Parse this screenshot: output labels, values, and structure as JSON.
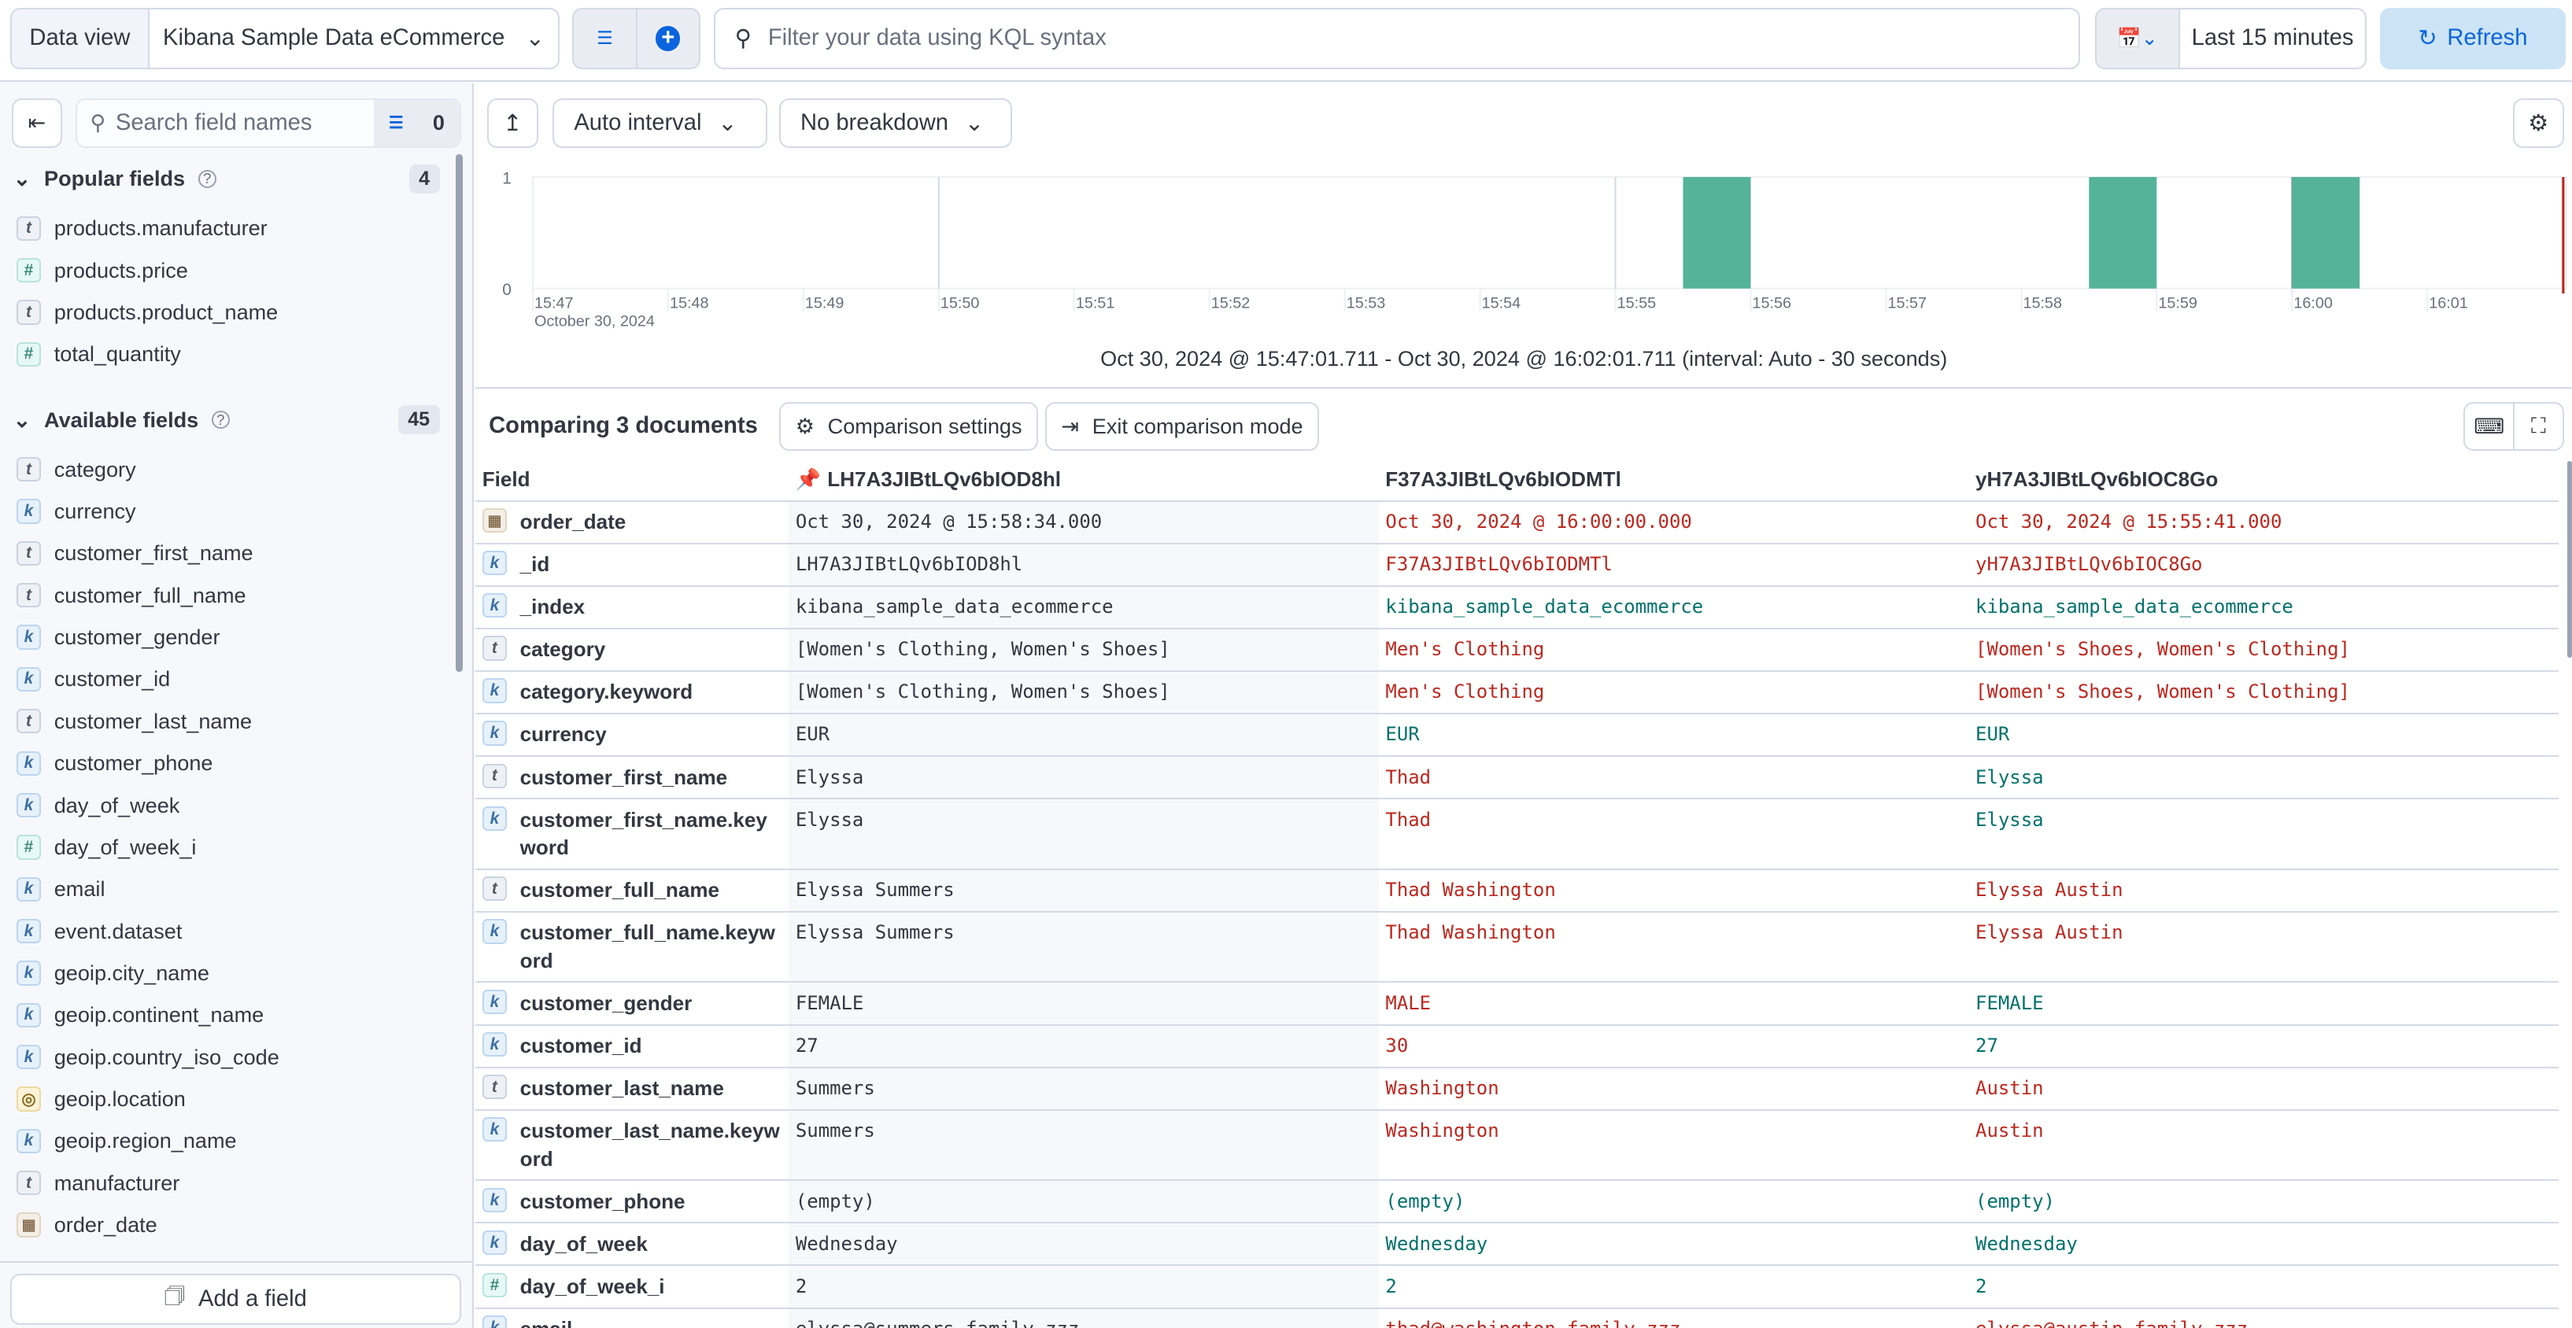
{
  "topbar": {
    "data_view_label": "Data view",
    "data_view_value": "Kibana Sample Data eCommerce",
    "query_placeholder": "Filter your data using KQL syntax",
    "time_range": "Last 15 minutes",
    "refresh_label": "Refresh"
  },
  "sidebar": {
    "search_placeholder": "Search field names",
    "filter_count": "0",
    "popular": {
      "title": "Popular fields",
      "count": "4",
      "items": [
        {
          "name": "products.manufacturer",
          "type": "t"
        },
        {
          "name": "products.price",
          "type": "#"
        },
        {
          "name": "products.product_name",
          "type": "t"
        },
        {
          "name": "total_quantity",
          "type": "#"
        }
      ]
    },
    "available": {
      "title": "Available fields",
      "count": "45",
      "items": [
        {
          "name": "category",
          "type": "t"
        },
        {
          "name": "currency",
          "type": "k"
        },
        {
          "name": "customer_first_name",
          "type": "t"
        },
        {
          "name": "customer_full_name",
          "type": "t"
        },
        {
          "name": "customer_gender",
          "type": "k"
        },
        {
          "name": "customer_id",
          "type": "k"
        },
        {
          "name": "customer_last_name",
          "type": "t"
        },
        {
          "name": "customer_phone",
          "type": "k"
        },
        {
          "name": "day_of_week",
          "type": "k"
        },
        {
          "name": "day_of_week_i",
          "type": "#"
        },
        {
          "name": "email",
          "type": "k"
        },
        {
          "name": "event.dataset",
          "type": "k"
        },
        {
          "name": "geoip.city_name",
          "type": "k"
        },
        {
          "name": "geoip.continent_name",
          "type": "k"
        },
        {
          "name": "geoip.country_iso_code",
          "type": "k"
        },
        {
          "name": "geoip.location",
          "type": "geo"
        },
        {
          "name": "geoip.region_name",
          "type": "k"
        },
        {
          "name": "manufacturer",
          "type": "t"
        },
        {
          "name": "order_date",
          "type": "date"
        }
      ]
    },
    "add_field_label": "Add a field"
  },
  "toolbar": {
    "interval": "Auto interval",
    "breakdown": "No breakdown"
  },
  "chart_data": {
    "type": "bar",
    "x_ticks": [
      "15:47",
      "15:48",
      "15:49",
      "15:50",
      "15:51",
      "15:52",
      "15:53",
      "15:54",
      "15:55",
      "15:56",
      "15:57",
      "15:58",
      "15:59",
      "16:00",
      "16:01"
    ],
    "x_sublabel": "October 30, 2024",
    "y_ticks": [
      "0",
      "1"
    ],
    "ylim": [
      0,
      1
    ],
    "xlim": [
      "15:47:01.711",
      "16:02:01.711"
    ],
    "interval_seconds": 30,
    "bars": [
      {
        "start": "15:55:30",
        "value": 1
      },
      {
        "start": "15:58:30",
        "value": 1
      },
      {
        "start": "16:00:00",
        "value": 1
      }
    ],
    "bar_color": "#54b399",
    "now_marker_color": "#bd271e"
  },
  "time_range_text": "Oct 30, 2024 @ 15:47:01.711 - Oct 30, 2024 @ 16:02:01.711 (interval: Auto - 30 seconds)",
  "comparison": {
    "title": "Comparing 3 documents",
    "settings_label": "Comparison settings",
    "exit_label": "Exit comparison mode",
    "columns": [
      "Field",
      "LH7A3JIBtLQv6bIOD8hl",
      "F37A3JIBtLQv6bIODMTl",
      "yH7A3JIBtLQv6bIOC8Go"
    ],
    "colors": {
      "diff": "#bd271e",
      "match": "#00726b"
    },
    "rows": [
      {
        "field": "order_date",
        "type": "date",
        "values": [
          "Oct 30, 2024 @ 15:58:34.000",
          "Oct 30, 2024 @ 16:00:00.000",
          "Oct 30, 2024 @ 15:55:41.000"
        ],
        "status": [
          "base",
          "diff",
          "diff"
        ]
      },
      {
        "field": "_id",
        "type": "k",
        "values": [
          "LH7A3JIBtLQv6bIOD8hl",
          "F37A3JIBtLQv6bIODMTl",
          "yH7A3JIBtLQv6bIOC8Go"
        ],
        "status": [
          "base",
          "diff",
          "diff"
        ]
      },
      {
        "field": "_index",
        "type": "k",
        "values": [
          "kibana_sample_data_ecommerce",
          "kibana_sample_data_ecommerce",
          "kibana_sample_data_ecommerce"
        ],
        "status": [
          "base",
          "match",
          "match"
        ]
      },
      {
        "field": "category",
        "type": "t",
        "values": [
          "[Women's Clothing, Women's Shoes]",
          "Men's Clothing",
          "[Women's Shoes, Women's Clothing]"
        ],
        "status": [
          "base",
          "diff",
          "diff"
        ]
      },
      {
        "field": "category.keyword",
        "type": "k",
        "values": [
          "[Women's Clothing, Women's Shoes]",
          "Men's Clothing",
          "[Women's Shoes, Women's Clothing]"
        ],
        "status": [
          "base",
          "diff",
          "diff"
        ]
      },
      {
        "field": "currency",
        "type": "k",
        "values": [
          "EUR",
          "EUR",
          "EUR"
        ],
        "status": [
          "base",
          "match",
          "match"
        ]
      },
      {
        "field": "customer_first_name",
        "type": "t",
        "values": [
          "Elyssa",
          "Thad",
          "Elyssa"
        ],
        "status": [
          "base",
          "diff",
          "match"
        ]
      },
      {
        "field": "customer_first_name.keyword",
        "type": "k",
        "values": [
          "Elyssa",
          "Thad",
          "Elyssa"
        ],
        "status": [
          "base",
          "diff",
          "match"
        ]
      },
      {
        "field": "customer_full_name",
        "type": "t",
        "values": [
          "Elyssa Summers",
          "Thad Washington",
          "Elyssa Austin"
        ],
        "status": [
          "base",
          "diff",
          "diff"
        ]
      },
      {
        "field": "customer_full_name.keyword",
        "type": "k",
        "values": [
          "Elyssa Summers",
          "Thad Washington",
          "Elyssa Austin"
        ],
        "status": [
          "base",
          "diff",
          "diff"
        ]
      },
      {
        "field": "customer_gender",
        "type": "k",
        "values": [
          "FEMALE",
          "MALE",
          "FEMALE"
        ],
        "status": [
          "base",
          "diff",
          "match"
        ]
      },
      {
        "field": "customer_id",
        "type": "k",
        "values": [
          "27",
          "30",
          "27"
        ],
        "status": [
          "base",
          "diff",
          "match"
        ]
      },
      {
        "field": "customer_last_name",
        "type": "t",
        "values": [
          "Summers",
          "Washington",
          "Austin"
        ],
        "status": [
          "base",
          "diff",
          "diff"
        ]
      },
      {
        "field": "customer_last_name.keyword",
        "type": "k",
        "values": [
          "Summers",
          "Washington",
          "Austin"
        ],
        "status": [
          "base",
          "diff",
          "diff"
        ]
      },
      {
        "field": "customer_phone",
        "type": "k",
        "values": [
          "(empty)",
          "(empty)",
          "(empty)"
        ],
        "status": [
          "base",
          "match",
          "match"
        ]
      },
      {
        "field": "day_of_week",
        "type": "k",
        "values": [
          "Wednesday",
          "Wednesday",
          "Wednesday"
        ],
        "status": [
          "base",
          "match",
          "match"
        ]
      },
      {
        "field": "day_of_week_i",
        "type": "#",
        "values": [
          "2",
          "2",
          "2"
        ],
        "status": [
          "base",
          "match",
          "match"
        ]
      },
      {
        "field": "email",
        "type": "k",
        "values": [
          "elyssa@summers-family.zzz",
          "thad@washington-family.zzz",
          "elyssa@austin-family.zzz"
        ],
        "status": [
          "base",
          "diff",
          "diff"
        ]
      }
    ]
  }
}
